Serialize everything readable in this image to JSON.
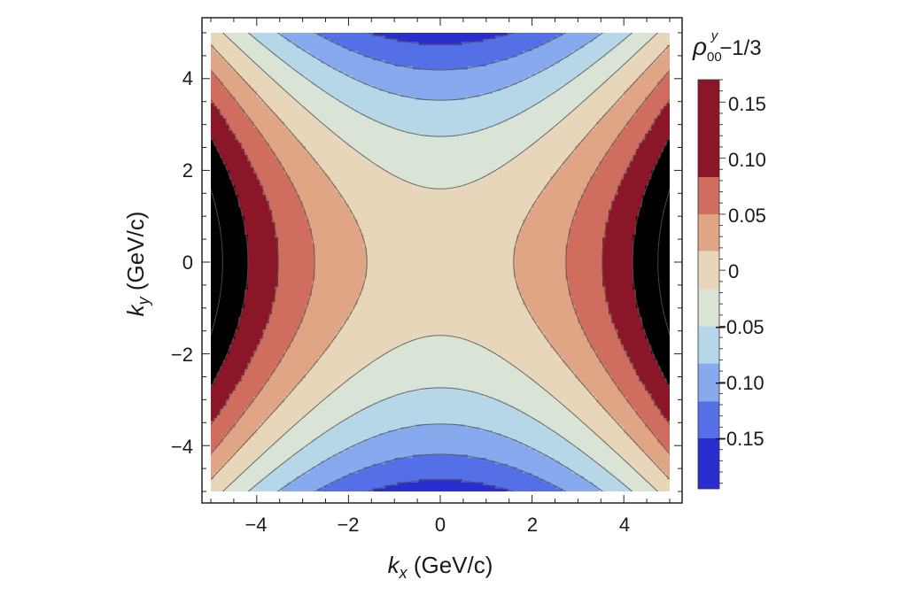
{
  "chart_data": {
    "type": "heatmap",
    "subtype": "contour",
    "xlabel": {
      "symbol": "k",
      "sub": "x",
      "units": " (GeV/c)"
    },
    "ylabel": {
      "symbol": "k",
      "sub": "y",
      "units": " (GeV/c)"
    },
    "xlim": [
      -5,
      5
    ],
    "ylim": [
      -5,
      5
    ],
    "xticks": [
      -4,
      -2,
      0,
      2,
      4
    ],
    "yticks": [
      -4,
      -2,
      0,
      2,
      4
    ],
    "xtick_labels": [
      "−4",
      "−2",
      "0",
      "2",
      "4"
    ],
    "ytick_labels": [
      "−4",
      "−2",
      "0",
      "2",
      "4"
    ],
    "colorbar": {
      "title_symbol": "ρ",
      "title_sub": "00",
      "title_sup": "y",
      "title_suffix": "−1/3",
      "range": [
        -0.195,
        0.17
      ],
      "ticks": [
        0.15,
        0.1,
        0.05,
        0,
        -0.05,
        -0.1,
        -0.15
      ],
      "tick_labels": [
        "0.15",
        "0.10",
        "0.05",
        "0",
        "−0.05",
        "−0.10",
        "−0.15"
      ],
      "colors": [
        "#2b2ecf",
        "#5570e6",
        "#87a9ee",
        "#b6d7e8",
        "#d9e3d6",
        "#e8d6bb",
        "#dfa585",
        "#cf6e5f",
        "#8a1628"
      ]
    },
    "field_model": "(k_x^2 - k_y^2)/150",
    "contour_levels": [
      -0.15,
      -0.117,
      -0.083,
      -0.05,
      -0.017,
      0.017,
      0.05,
      0.083,
      0.117,
      0.15
    ],
    "legend": "colorbar-right",
    "grid": false
  }
}
